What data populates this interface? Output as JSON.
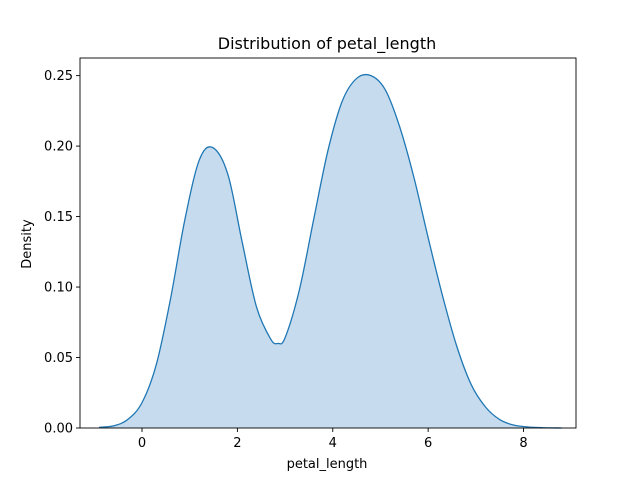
{
  "chart_data": {
    "type": "area",
    "title": "Distribution of petal_length",
    "xlabel": "petal_length",
    "ylabel": "Density",
    "xlim": [
      -1.3,
      9.1
    ],
    "ylim": [
      0,
      0.2625
    ],
    "x_ticks": [
      0,
      2,
      4,
      6,
      8
    ],
    "y_ticks": [
      0.0,
      0.05,
      0.1,
      0.15,
      0.2,
      0.25
    ],
    "x_tick_labels": [
      "0",
      "2",
      "4",
      "6",
      "8"
    ],
    "y_tick_labels": [
      "0.00",
      "0.05",
      "0.10",
      "0.15",
      "0.20",
      "0.25"
    ],
    "grid": false,
    "line_color": "#1f77b4",
    "fill_color": "#c6dcee",
    "series": [
      {
        "x": [
          -0.9,
          -0.6,
          -0.3,
          0.0,
          0.3,
          0.6,
          0.9,
          1.2,
          1.48,
          1.8,
          2.1,
          2.4,
          2.7,
          2.85,
          3.0,
          3.3,
          3.6,
          3.9,
          4.2,
          4.5,
          4.8,
          5.1,
          5.4,
          5.7,
          6.0,
          6.3,
          6.6,
          6.9,
          7.2,
          7.5,
          7.8,
          8.1,
          8.4,
          8.8
        ],
        "y": [
          0.0005,
          0.0015,
          0.006,
          0.018,
          0.045,
          0.092,
          0.148,
          0.19,
          0.199,
          0.18,
          0.132,
          0.086,
          0.063,
          0.06,
          0.064,
          0.098,
          0.148,
          0.197,
          0.232,
          0.248,
          0.25,
          0.24,
          0.214,
          0.178,
          0.135,
          0.094,
          0.058,
          0.031,
          0.015,
          0.006,
          0.002,
          0.0007,
          0.0002,
          0.0
        ]
      }
    ]
  }
}
